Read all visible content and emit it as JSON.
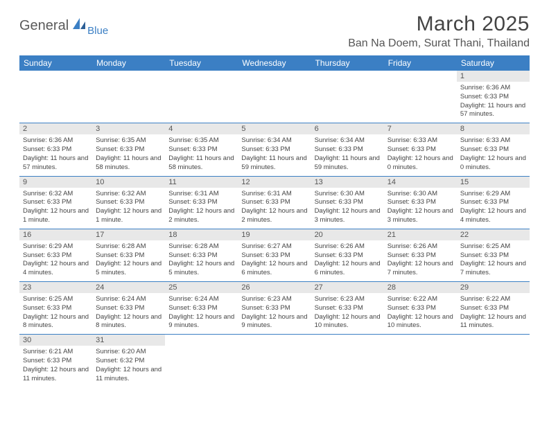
{
  "logo": {
    "main": "General",
    "sub": "Blue"
  },
  "title": "March 2025",
  "location": "Ban Na Doem, Surat Thani, Thailand",
  "colors": {
    "header_bg": "#3b7fc4",
    "header_text": "#ffffff",
    "daynum_bg": "#e8e8e8",
    "row_border": "#3b7fc4",
    "body_bg": "#ffffff",
    "text": "#444444",
    "logo_main": "#5a5a5a",
    "logo_sub": "#3b7fc4"
  },
  "typography": {
    "title_fontsize": 30,
    "location_fontsize": 16,
    "weekday_fontsize": 12,
    "daynum_fontsize": 11,
    "cell_fontsize": 9.5
  },
  "weekdays": [
    "Sunday",
    "Monday",
    "Tuesday",
    "Wednesday",
    "Thursday",
    "Friday",
    "Saturday"
  ],
  "weeks": [
    [
      null,
      null,
      null,
      null,
      null,
      null,
      {
        "n": "1",
        "sr": "Sunrise: 6:36 AM",
        "ss": "Sunset: 6:33 PM",
        "dl": "Daylight: 11 hours and 57 minutes."
      }
    ],
    [
      {
        "n": "2",
        "sr": "Sunrise: 6:36 AM",
        "ss": "Sunset: 6:33 PM",
        "dl": "Daylight: 11 hours and 57 minutes."
      },
      {
        "n": "3",
        "sr": "Sunrise: 6:35 AM",
        "ss": "Sunset: 6:33 PM",
        "dl": "Daylight: 11 hours and 58 minutes."
      },
      {
        "n": "4",
        "sr": "Sunrise: 6:35 AM",
        "ss": "Sunset: 6:33 PM",
        "dl": "Daylight: 11 hours and 58 minutes."
      },
      {
        "n": "5",
        "sr": "Sunrise: 6:34 AM",
        "ss": "Sunset: 6:33 PM",
        "dl": "Daylight: 11 hours and 59 minutes."
      },
      {
        "n": "6",
        "sr": "Sunrise: 6:34 AM",
        "ss": "Sunset: 6:33 PM",
        "dl": "Daylight: 11 hours and 59 minutes."
      },
      {
        "n": "7",
        "sr": "Sunrise: 6:33 AM",
        "ss": "Sunset: 6:33 PM",
        "dl": "Daylight: 12 hours and 0 minutes."
      },
      {
        "n": "8",
        "sr": "Sunrise: 6:33 AM",
        "ss": "Sunset: 6:33 PM",
        "dl": "Daylight: 12 hours and 0 minutes."
      }
    ],
    [
      {
        "n": "9",
        "sr": "Sunrise: 6:32 AM",
        "ss": "Sunset: 6:33 PM",
        "dl": "Daylight: 12 hours and 1 minute."
      },
      {
        "n": "10",
        "sr": "Sunrise: 6:32 AM",
        "ss": "Sunset: 6:33 PM",
        "dl": "Daylight: 12 hours and 1 minute."
      },
      {
        "n": "11",
        "sr": "Sunrise: 6:31 AM",
        "ss": "Sunset: 6:33 PM",
        "dl": "Daylight: 12 hours and 2 minutes."
      },
      {
        "n": "12",
        "sr": "Sunrise: 6:31 AM",
        "ss": "Sunset: 6:33 PM",
        "dl": "Daylight: 12 hours and 2 minutes."
      },
      {
        "n": "13",
        "sr": "Sunrise: 6:30 AM",
        "ss": "Sunset: 6:33 PM",
        "dl": "Daylight: 12 hours and 3 minutes."
      },
      {
        "n": "14",
        "sr": "Sunrise: 6:30 AM",
        "ss": "Sunset: 6:33 PM",
        "dl": "Daylight: 12 hours and 3 minutes."
      },
      {
        "n": "15",
        "sr": "Sunrise: 6:29 AM",
        "ss": "Sunset: 6:33 PM",
        "dl": "Daylight: 12 hours and 4 minutes."
      }
    ],
    [
      {
        "n": "16",
        "sr": "Sunrise: 6:29 AM",
        "ss": "Sunset: 6:33 PM",
        "dl": "Daylight: 12 hours and 4 minutes."
      },
      {
        "n": "17",
        "sr": "Sunrise: 6:28 AM",
        "ss": "Sunset: 6:33 PM",
        "dl": "Daylight: 12 hours and 5 minutes."
      },
      {
        "n": "18",
        "sr": "Sunrise: 6:28 AM",
        "ss": "Sunset: 6:33 PM",
        "dl": "Daylight: 12 hours and 5 minutes."
      },
      {
        "n": "19",
        "sr": "Sunrise: 6:27 AM",
        "ss": "Sunset: 6:33 PM",
        "dl": "Daylight: 12 hours and 6 minutes."
      },
      {
        "n": "20",
        "sr": "Sunrise: 6:26 AM",
        "ss": "Sunset: 6:33 PM",
        "dl": "Daylight: 12 hours and 6 minutes."
      },
      {
        "n": "21",
        "sr": "Sunrise: 6:26 AM",
        "ss": "Sunset: 6:33 PM",
        "dl": "Daylight: 12 hours and 7 minutes."
      },
      {
        "n": "22",
        "sr": "Sunrise: 6:25 AM",
        "ss": "Sunset: 6:33 PM",
        "dl": "Daylight: 12 hours and 7 minutes."
      }
    ],
    [
      {
        "n": "23",
        "sr": "Sunrise: 6:25 AM",
        "ss": "Sunset: 6:33 PM",
        "dl": "Daylight: 12 hours and 8 minutes."
      },
      {
        "n": "24",
        "sr": "Sunrise: 6:24 AM",
        "ss": "Sunset: 6:33 PM",
        "dl": "Daylight: 12 hours and 8 minutes."
      },
      {
        "n": "25",
        "sr": "Sunrise: 6:24 AM",
        "ss": "Sunset: 6:33 PM",
        "dl": "Daylight: 12 hours and 9 minutes."
      },
      {
        "n": "26",
        "sr": "Sunrise: 6:23 AM",
        "ss": "Sunset: 6:33 PM",
        "dl": "Daylight: 12 hours and 9 minutes."
      },
      {
        "n": "27",
        "sr": "Sunrise: 6:23 AM",
        "ss": "Sunset: 6:33 PM",
        "dl": "Daylight: 12 hours and 10 minutes."
      },
      {
        "n": "28",
        "sr": "Sunrise: 6:22 AM",
        "ss": "Sunset: 6:33 PM",
        "dl": "Daylight: 12 hours and 10 minutes."
      },
      {
        "n": "29",
        "sr": "Sunrise: 6:22 AM",
        "ss": "Sunset: 6:33 PM",
        "dl": "Daylight: 12 hours and 11 minutes."
      }
    ],
    [
      {
        "n": "30",
        "sr": "Sunrise: 6:21 AM",
        "ss": "Sunset: 6:33 PM",
        "dl": "Daylight: 12 hours and 11 minutes."
      },
      {
        "n": "31",
        "sr": "Sunrise: 6:20 AM",
        "ss": "Sunset: 6:32 PM",
        "dl": "Daylight: 12 hours and 11 minutes."
      },
      null,
      null,
      null,
      null,
      null
    ]
  ]
}
